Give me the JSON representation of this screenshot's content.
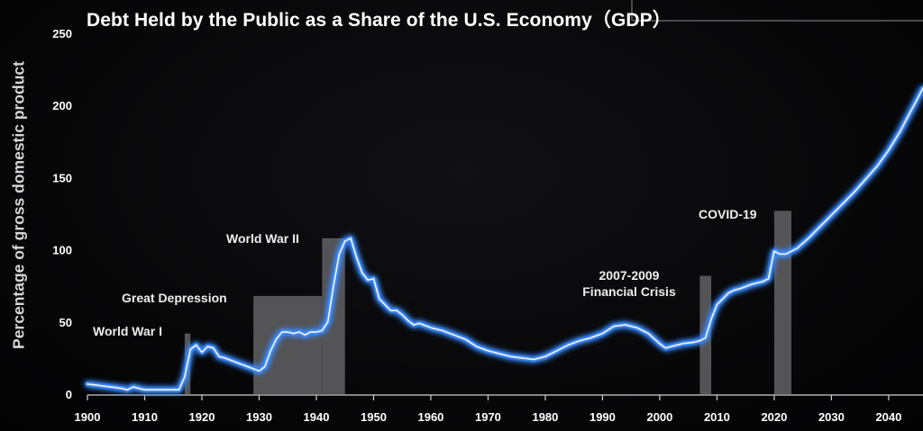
{
  "chart_data": {
    "type": "line",
    "title": "Debt Held by the Public as a Share of the U.S. Economy（GDP）",
    "ylabel": "Percentage of gross domestic product",
    "xlabel": "",
    "xlim": [
      1900,
      2046
    ],
    "ylim": [
      0,
      250
    ],
    "x_ticks": [
      1900,
      1910,
      1920,
      1930,
      1940,
      1950,
      1960,
      1970,
      1980,
      1990,
      2000,
      2010,
      2020,
      2030,
      2040
    ],
    "y_ticks": [
      0,
      50,
      100,
      150,
      200,
      250
    ],
    "grid": false,
    "line_color": "#3d8bff",
    "series": [
      {
        "x": [
          1900,
          1902,
          1904,
          1906,
          1907,
          1908,
          1909,
          1910,
          1912,
          1914,
          1916,
          1917,
          1918,
          1919,
          1920,
          1921,
          1922,
          1923,
          1924,
          1926,
          1928,
          1930,
          1931,
          1932,
          1933,
          1934,
          1935,
          1936,
          1937,
          1938,
          1939,
          1940,
          1941,
          1942,
          1943,
          1944,
          1945,
          1946,
          1947,
          1948,
          1949,
          1950,
          1951,
          1952,
          1953,
          1954,
          1955,
          1956,
          1957,
          1958,
          1960,
          1962,
          1964,
          1966,
          1968,
          1970,
          1972,
          1974,
          1976,
          1978,
          1980,
          1982,
          1984,
          1986,
          1988,
          1990,
          1992,
          1994,
          1996,
          1998,
          2000,
          2001,
          2002,
          2004,
          2006,
          2007,
          2008,
          2009,
          2010,
          2011,
          2012,
          2013,
          2014,
          2016,
          2018,
          2019,
          2020,
          2021,
          2022,
          2023,
          2024,
          2026,
          2028,
          2030,
          2032,
          2034,
          2036,
          2038,
          2040,
          2042,
          2044,
          2046
        ],
        "y": [
          7,
          6,
          5,
          4,
          3,
          5,
          4,
          3,
          3,
          3,
          3,
          12,
          31,
          34,
          29,
          33,
          32,
          26,
          25,
          22,
          19,
          16,
          19,
          30,
          38,
          43,
          43,
          42,
          43,
          41,
          43,
          43,
          44,
          50,
          75,
          97,
          106,
          108,
          95,
          84,
          79,
          80,
          66,
          62,
          58,
          58,
          55,
          51,
          48,
          49,
          46,
          44,
          41,
          38,
          33,
          30,
          28,
          26,
          25,
          24,
          26,
          30,
          34,
          37,
          39,
          42,
          47,
          48,
          46,
          42,
          35,
          32,
          33,
          35,
          36,
          37,
          39,
          52,
          62,
          66,
          70,
          72,
          73,
          76,
          78,
          80,
          99,
          97,
          97,
          99,
          101,
          108,
          116,
          124,
          132,
          140,
          149,
          158,
          169,
          182,
          197,
          212
        ]
      }
    ],
    "bars_label": "gray shaded periods",
    "bars": [
      {
        "x_start": 1917,
        "x_end": 1918,
        "height": 42
      },
      {
        "x_start": 1929,
        "x_end": 1941,
        "height": 68
      },
      {
        "x_start": 1941,
        "x_end": 1945,
        "height": 108
      },
      {
        "x_start": 2007,
        "x_end": 2009,
        "height": 82
      },
      {
        "x_start": 2020,
        "x_end": 2023,
        "height": 127
      }
    ],
    "annotations": [
      {
        "id": "ww1",
        "text": "World War I"
      },
      {
        "id": "great_depression",
        "text": "Great Depression"
      },
      {
        "id": "ww2",
        "text": "World War II"
      },
      {
        "id": "financial_crisis_line1",
        "text": "2007-2009"
      },
      {
        "id": "financial_crisis_line2",
        "text": "Financial Crisis"
      },
      {
        "id": "covid",
        "text": "COVID-19"
      }
    ]
  }
}
